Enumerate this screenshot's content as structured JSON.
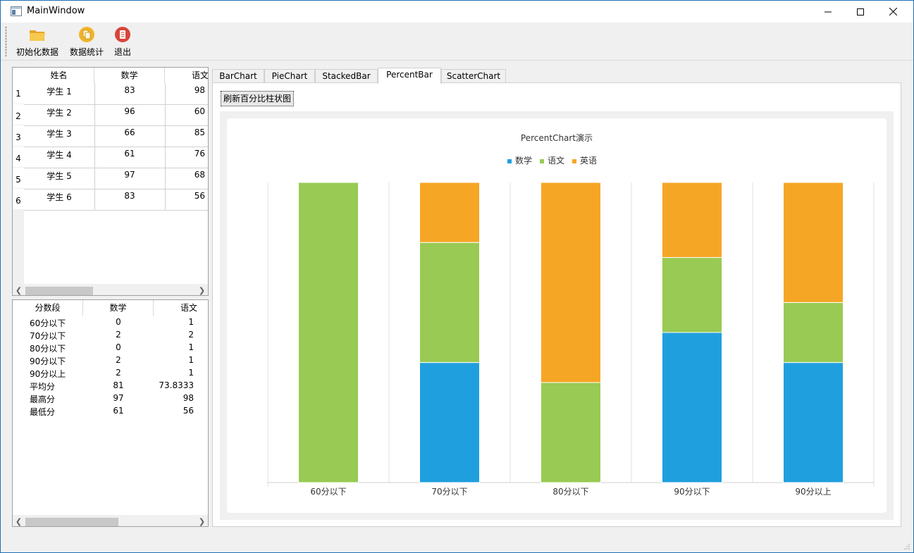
{
  "window": {
    "title": "MainWindow"
  },
  "toolbar": {
    "init_label": "初始化数据",
    "stats_label": "数据统计",
    "exit_label": "退出"
  },
  "students_table": {
    "columns": [
      "姓名",
      "数学",
      "语文"
    ],
    "rows": [
      {
        "num": "1",
        "name": "学生 1",
        "math": "83",
        "chinese": "98"
      },
      {
        "num": "2",
        "name": "学生 2",
        "math": "96",
        "chinese": "60"
      },
      {
        "num": "3",
        "name": "学生 3",
        "math": "66",
        "chinese": "85"
      },
      {
        "num": "4",
        "name": "学生 4",
        "math": "61",
        "chinese": "76"
      },
      {
        "num": "5",
        "name": "学生 5",
        "math": "97",
        "chinese": "68"
      },
      {
        "num": "6",
        "name": "学生 6",
        "math": "83",
        "chinese": "56"
      }
    ]
  },
  "stats_table": {
    "columns": [
      "分数段",
      "数学",
      "语文"
    ],
    "rows": [
      {
        "label": "60分以下",
        "math": "0",
        "chinese": "1"
      },
      {
        "label": "70分以下",
        "math": "2",
        "chinese": "2"
      },
      {
        "label": "80分以下",
        "math": "0",
        "chinese": "1"
      },
      {
        "label": "90分以下",
        "math": "2",
        "chinese": "1"
      },
      {
        "label": "90分以上",
        "math": "2",
        "chinese": "1"
      },
      {
        "label": "平均分",
        "math": "81",
        "chinese": "73.8333"
      },
      {
        "label": "最高分",
        "math": "97",
        "chinese": "98"
      },
      {
        "label": "最低分",
        "math": "61",
        "chinese": "56"
      }
    ]
  },
  "tabs": [
    "BarChart",
    "PieChart",
    "StackedBar",
    "PercentBar",
    "ScatterChart"
  ],
  "active_tab": "PercentBar",
  "refresh_label": "刷新百分比柱状图",
  "colors": {
    "math": "#209fdf",
    "chinese": "#99ca53",
    "english": "#f6a625",
    "accent": "#1f6fb5"
  },
  "chart_data": {
    "type": "bar",
    "stacking": "percent",
    "title": "PercentChart演示",
    "categories": [
      "60分以下",
      "70分以下",
      "80分以下",
      "90分以下",
      "90分以上"
    ],
    "series": [
      {
        "name": "数学",
        "values": [
          0,
          2,
          0,
          2,
          2
        ]
      },
      {
        "name": "语文",
        "values": [
          1,
          2,
          1,
          1,
          1
        ]
      },
      {
        "name": "英语",
        "values": [
          0,
          1,
          2,
          1,
          2
        ]
      }
    ],
    "legend": "top-center",
    "ylim": [
      0,
      100
    ],
    "grid": true
  }
}
